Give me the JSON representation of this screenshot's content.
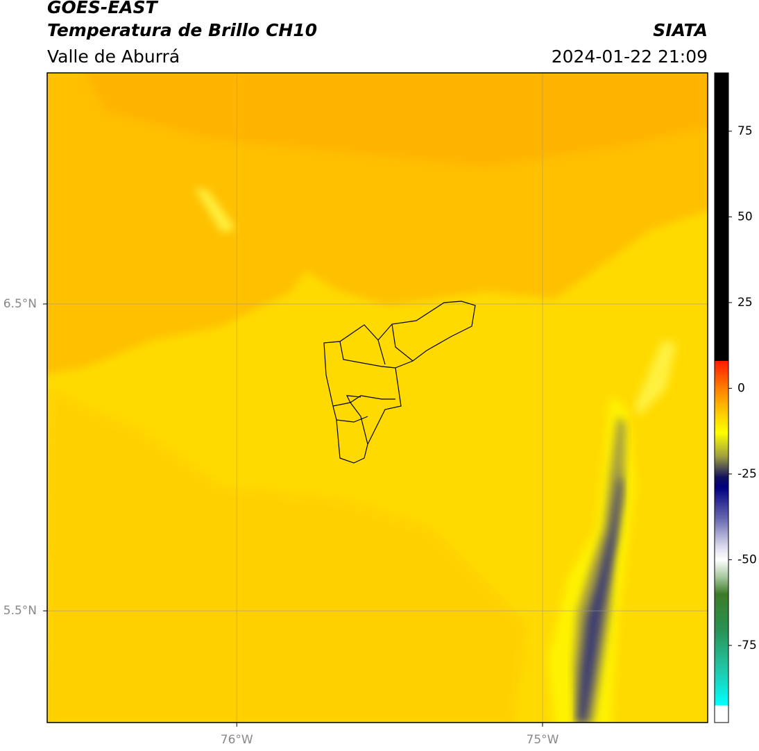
{
  "header": {
    "title": "GOES-EAST",
    "subtitle": "Temperatura de Brillo CH10",
    "region": "Valle de Aburrá",
    "source": "SIATA",
    "datetime": "2024-01-22 21:09"
  },
  "map": {
    "xlim": [
      -76.62,
      -74.46
    ],
    "ylim": [
      5.136,
      7.253
    ],
    "xticks": [
      {
        "value": -76,
        "label": "76°W"
      },
      {
        "value": -75,
        "label": "75°W"
      }
    ],
    "yticks": [
      {
        "value": 6.5,
        "label": "6.5°N"
      },
      {
        "value": 5.5,
        "label": "5.5°N"
      }
    ],
    "grid": true
  },
  "colorbar": {
    "lim": [
      -97.5,
      92
    ],
    "ticks": [
      75,
      50,
      25,
      0,
      -25,
      -50,
      -75
    ],
    "stops": [
      {
        "value": 92,
        "color": "#000000"
      },
      {
        "value": 8,
        "color": "#000000"
      },
      {
        "value": 8,
        "color": "#ff1a00"
      },
      {
        "value": 0,
        "color": "#ff7f00"
      },
      {
        "value": -6,
        "color": "#ffc000"
      },
      {
        "value": -13,
        "color": "#ffff00"
      },
      {
        "value": -20,
        "color": "#9c9c40"
      },
      {
        "value": -26,
        "color": "#101060"
      },
      {
        "value": -29,
        "color": "#000080"
      },
      {
        "value": -38,
        "color": "#6868b0"
      },
      {
        "value": -46,
        "color": "#d8d8ec"
      },
      {
        "value": -50,
        "color": "#ffffff"
      },
      {
        "value": -55,
        "color": "#a8c8a0"
      },
      {
        "value": -60,
        "color": "#3c7c28"
      },
      {
        "value": -70,
        "color": "#2a9050"
      },
      {
        "value": -82,
        "color": "#20c8a8"
      },
      {
        "value": -92.5,
        "color": "#00ffff"
      },
      {
        "value": -92.5,
        "color": "#ffffff"
      },
      {
        "value": -97.5,
        "color": "#ffffff"
      }
    ]
  }
}
